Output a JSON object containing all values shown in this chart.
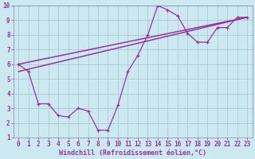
{
  "xlabel": "Windchill (Refroidissement éolien,°C)",
  "background_color": "#cce8f0",
  "grid_color": "#b0c8d8",
  "line_color": "#993399",
  "spine_color": "#8888aa",
  "xlim": [
    -0.5,
    23.5
  ],
  "ylim": [
    1,
    10
  ],
  "xticks": [
    0,
    1,
    2,
    3,
    4,
    5,
    6,
    7,
    8,
    9,
    10,
    11,
    12,
    13,
    14,
    15,
    16,
    17,
    18,
    19,
    20,
    21,
    22,
    23
  ],
  "yticks": [
    1,
    2,
    3,
    4,
    5,
    6,
    7,
    8,
    9,
    10
  ],
  "curve1_x": [
    0,
    1,
    2,
    3,
    4,
    5,
    6,
    7,
    8,
    9,
    10,
    11,
    12,
    13,
    14,
    15,
    16,
    17,
    18,
    19,
    20,
    21,
    22,
    23
  ],
  "curve1_y": [
    6.0,
    5.5,
    3.3,
    3.3,
    2.5,
    2.4,
    3.0,
    2.8,
    1.5,
    1.5,
    3.2,
    5.5,
    6.6,
    8.0,
    10.0,
    9.7,
    9.3,
    8.1,
    7.5,
    7.5,
    8.5,
    8.5,
    9.2,
    9.2
  ],
  "line1_x": [
    0,
    23
  ],
  "line1_y": [
    6.0,
    9.2
  ],
  "line2_x": [
    0,
    23
  ],
  "line2_y": [
    5.5,
    9.2
  ]
}
